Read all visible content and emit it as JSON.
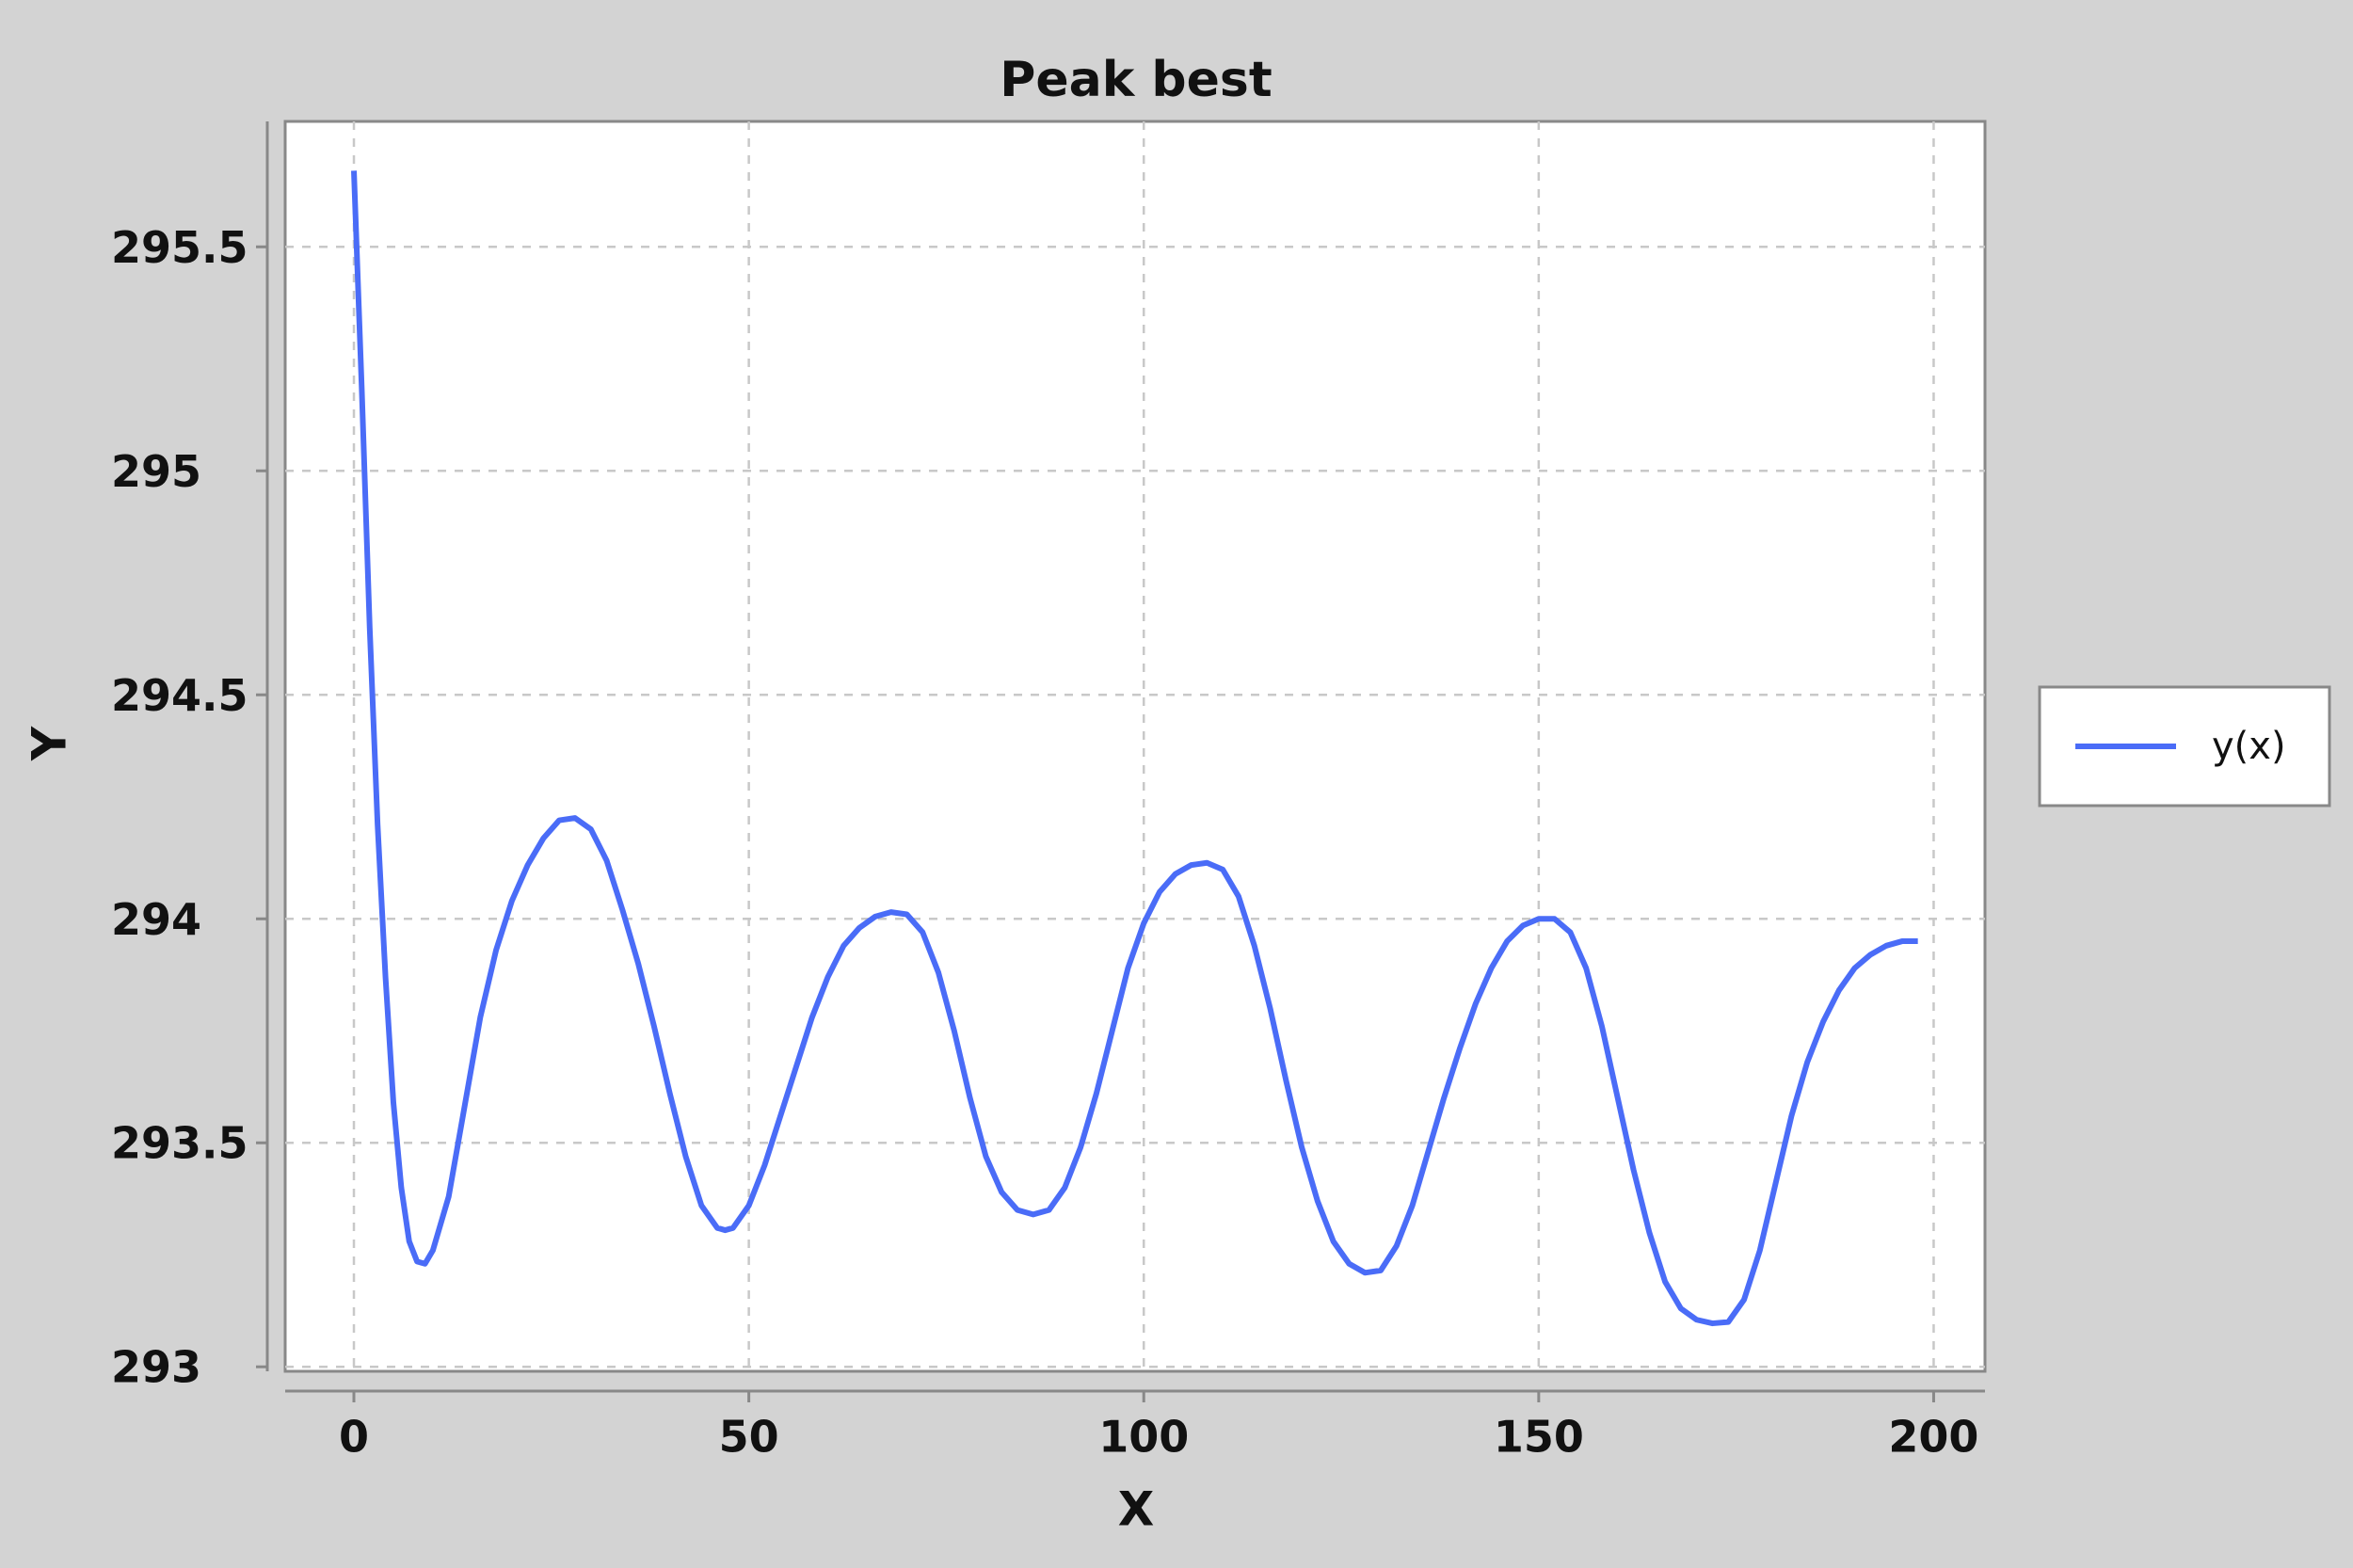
{
  "chart_data": {
    "type": "line",
    "title": "Peak best",
    "xlabel": "X",
    "ylabel": "Y",
    "x": [
      0,
      1,
      2,
      3,
      4,
      5,
      6,
      7,
      8,
      9,
      10,
      12,
      14,
      16,
      18,
      20,
      22,
      24,
      26,
      28,
      30,
      32,
      34,
      36,
      38,
      40,
      42,
      44,
      46,
      47,
      48,
      50,
      52,
      54,
      56,
      58,
      60,
      62,
      64,
      66,
      68,
      70,
      72,
      74,
      76,
      78,
      80,
      82,
      84,
      86,
      88,
      90,
      92,
      94,
      96,
      98,
      100,
      102,
      104,
      106,
      108,
      110,
      112,
      114,
      116,
      118,
      120,
      122,
      124,
      126,
      128,
      130,
      132,
      134,
      136,
      138,
      140,
      142,
      144,
      146,
      148,
      150,
      152,
      154,
      156,
      158,
      160,
      162,
      164,
      166,
      168,
      170,
      172,
      174,
      176,
      178,
      180,
      182,
      184,
      186,
      188,
      190,
      192,
      194,
      196,
      198
    ],
    "series": [
      {
        "name": "y(x)",
        "color": "#4a6cf7",
        "values": [
          295.67,
          295.18,
          294.65,
          294.21,
          293.87,
          293.59,
          293.4,
          293.28,
          293.235,
          293.23,
          293.26,
          293.38,
          293.58,
          293.78,
          293.93,
          294.04,
          294.12,
          294.18,
          294.22,
          294.225,
          294.2,
          294.13,
          294.02,
          293.9,
          293.76,
          293.61,
          293.47,
          293.36,
          293.31,
          293.305,
          293.31,
          293.36,
          293.45,
          293.56,
          293.67,
          293.78,
          293.87,
          293.94,
          293.98,
          294.005,
          294.015,
          294.01,
          293.97,
          293.88,
          293.75,
          293.6,
          293.47,
          293.39,
          293.35,
          293.34,
          293.35,
          293.4,
          293.49,
          293.61,
          293.75,
          293.89,
          293.99,
          294.06,
          294.1,
          294.12,
          294.125,
          294.11,
          294.05,
          293.94,
          293.8,
          293.64,
          293.49,
          293.37,
          293.28,
          293.23,
          293.21,
          293.215,
          293.27,
          293.36,
          293.48,
          293.6,
          293.71,
          293.81,
          293.89,
          293.95,
          293.985,
          294.0,
          294.0,
          293.97,
          293.89,
          293.76,
          293.6,
          293.44,
          293.3,
          293.19,
          293.13,
          293.105,
          293.097,
          293.1,
          293.15,
          293.26,
          293.41,
          293.56,
          293.68,
          293.77,
          293.84,
          293.89,
          293.92,
          293.94,
          293.95,
          293.95
        ]
      }
    ],
    "xlim": [
      -8.7,
      206.5
    ],
    "xticks": [
      0,
      50,
      100,
      150,
      200
    ],
    "ylim": [
      292.99,
      295.78
    ],
    "yticks": [
      293,
      293.5,
      294,
      294.5,
      295,
      295.5
    ],
    "grid": true,
    "legend": "right"
  }
}
